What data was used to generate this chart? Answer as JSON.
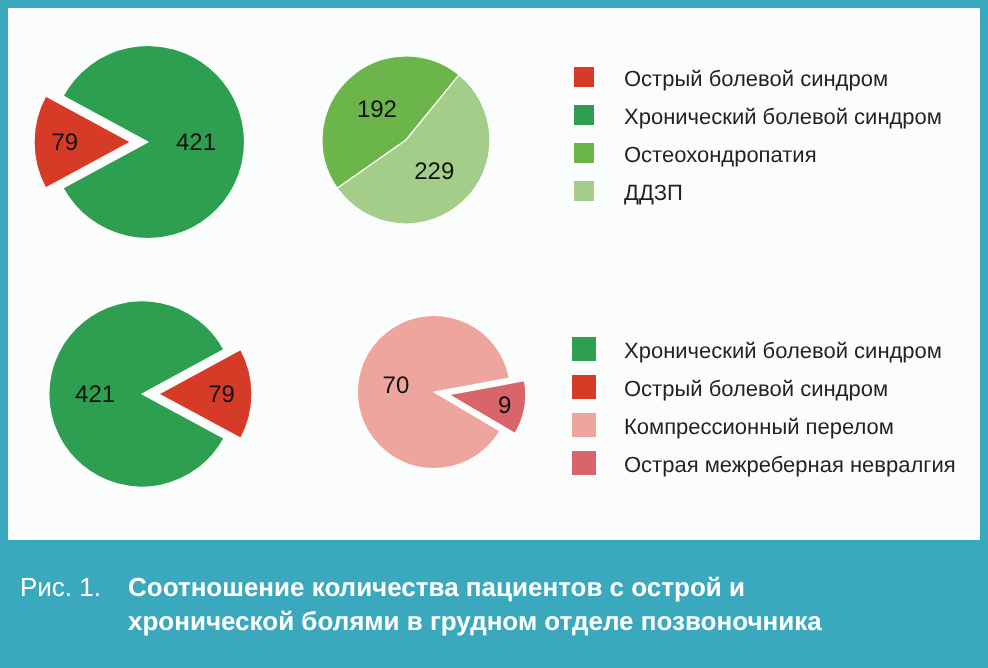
{
  "chart_data": [
    {
      "type": "pie",
      "categories": [
        "Острый болевой синдром",
        "Хронический болевой синдром"
      ],
      "values": [
        79,
        421
      ],
      "colors": [
        "#d63b27",
        "#2e9f50"
      ],
      "data_labels": true,
      "legend": "right"
    },
    {
      "type": "pie",
      "categories": [
        "Остеохондропатия",
        "ДДЗП"
      ],
      "values": [
        192,
        229
      ],
      "colors": [
        "#6cb54a",
        "#a3cd89"
      ],
      "data_labels": true,
      "legend": "right"
    },
    {
      "type": "pie",
      "categories": [
        "Хронический болевой синдром",
        "Острый болевой синдром"
      ],
      "values": [
        421,
        79
      ],
      "colors": [
        "#2e9f50",
        "#d63b27"
      ],
      "data_labels": true,
      "legend": "right"
    },
    {
      "type": "pie",
      "categories": [
        "Компрессионный перелом",
        "Острая межреберная невралгия"
      ],
      "values": [
        70,
        9
      ],
      "colors": [
        "#eea59d",
        "#d9646a"
      ],
      "data_labels": true,
      "legend": "right",
      "annotations": [
        "Рис. 1.",
        "Соотношение количества пациентов с острой и хронической болями в грудном отделе позвоночника"
      ]
    }
  ]
}
